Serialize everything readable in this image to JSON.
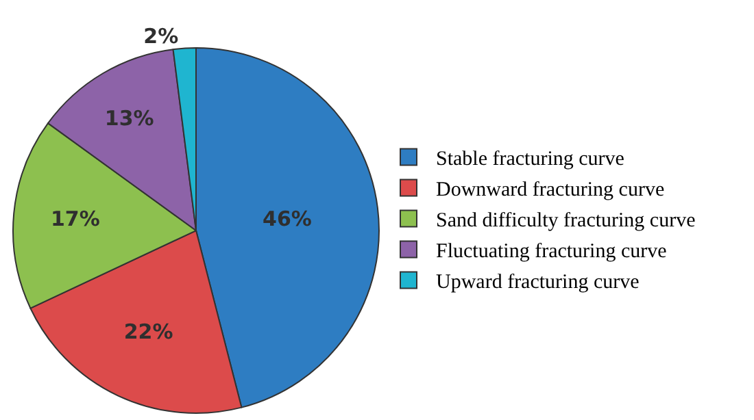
{
  "chart_data": {
    "type": "pie",
    "categories": [
      "Stable fracturing curve",
      "Downward fracturing curve",
      "Sand difficulty fracturing curve",
      "Fluctuating fracturing curve",
      "Upward fracturing curve"
    ],
    "values": [
      46,
      22,
      17,
      13,
      2
    ],
    "colors": [
      "#2e7dc2",
      "#dc4b4b",
      "#8dc04f",
      "#8d63a8",
      "#1fb5d0"
    ],
    "value_labels": [
      "46%",
      "22%",
      "17%",
      "13%",
      "2%"
    ],
    "legend": "right"
  }
}
